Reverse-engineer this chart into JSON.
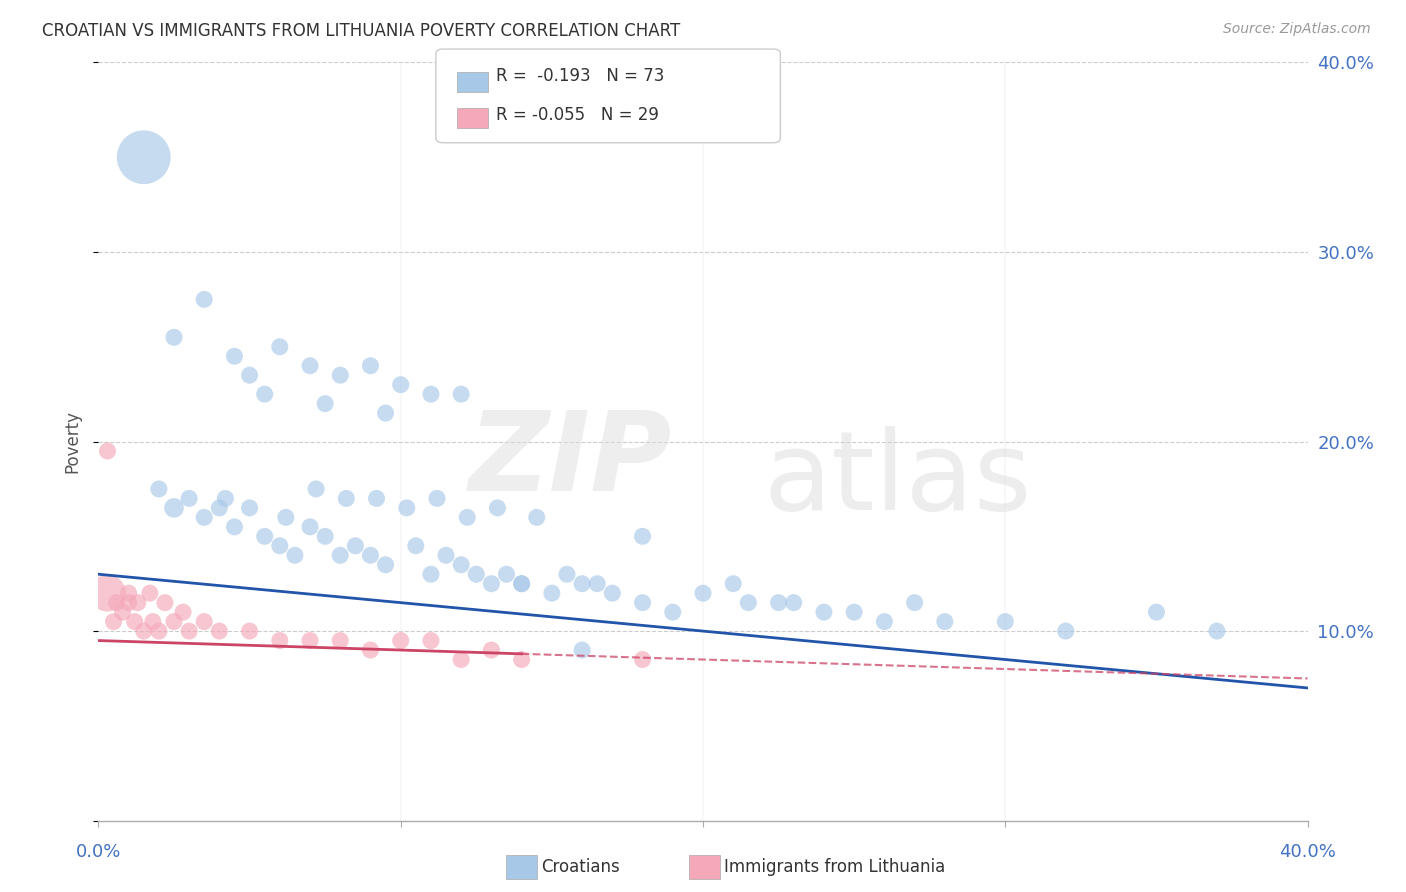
{
  "title": "CROATIAN VS IMMIGRANTS FROM LITHUANIA POVERTY CORRELATION CHART",
  "source": "Source: ZipAtlas.com",
  "ylabel": "Poverty",
  "legend_r1_label": "R =  -0.193   N = 73",
  "legend_r2_label": "R = -0.055   N = 29",
  "blue_color": "#a8c8e8",
  "pink_color": "#f4a8b8",
  "blue_line_color": "#2255aa",
  "pink_line_color": "#cc4466",
  "xmin": 0,
  "xmax": 40,
  "ymin": 0,
  "ymax": 40,
  "ytick_vals": [
    0,
    10,
    20,
    30,
    40
  ],
  "right_ytick_labels": [
    "",
    "10.0%",
    "20.0%",
    "30.0%",
    "40.0%"
  ],
  "blue_trend": [
    0.0,
    40.0,
    13.0,
    7.0
  ],
  "pink_trend": [
    0.0,
    40.0,
    9.5,
    7.5
  ],
  "pink_solid_end_x": 14.0,
  "croatians_x": [
    2.5,
    3.5,
    4.5,
    5.5,
    6.0,
    6.5,
    7.0,
    7.5,
    8.0,
    8.5,
    9.0,
    9.5,
    10.5,
    11.0,
    11.5,
    12.0,
    12.5,
    13.0,
    13.5,
    14.0,
    15.0,
    15.5,
    16.0,
    16.5,
    17.0,
    18.0,
    19.0,
    20.0,
    21.0,
    21.5,
    22.5,
    23.0,
    24.0,
    25.0,
    26.0,
    27.0,
    28.0,
    30.0,
    32.0,
    35.0,
    37.0,
    2.0,
    3.0,
    4.0,
    4.2,
    5.0,
    6.2,
    7.2,
    8.2,
    9.2,
    10.2,
    11.2,
    12.2,
    13.2,
    14.5,
    5.5,
    7.5,
    9.5,
    1.5,
    2.5,
    3.5,
    4.5,
    5.0,
    6.0,
    7.0,
    8.0,
    9.0,
    10.0,
    11.0,
    12.0,
    14.0,
    16.0,
    18.0
  ],
  "croatians_y": [
    16.5,
    16.0,
    15.5,
    15.0,
    14.5,
    14.0,
    15.5,
    15.0,
    14.0,
    14.5,
    14.0,
    13.5,
    14.5,
    13.0,
    14.0,
    13.5,
    13.0,
    12.5,
    13.0,
    12.5,
    12.0,
    13.0,
    12.5,
    12.5,
    12.0,
    11.5,
    11.0,
    12.0,
    12.5,
    11.5,
    11.5,
    11.5,
    11.0,
    11.0,
    10.5,
    11.5,
    10.5,
    10.5,
    10.0,
    11.0,
    10.0,
    17.5,
    17.0,
    16.5,
    17.0,
    16.5,
    16.0,
    17.5,
    17.0,
    17.0,
    16.5,
    17.0,
    16.0,
    16.5,
    16.0,
    22.5,
    22.0,
    21.5,
    35.0,
    25.5,
    27.5,
    24.5,
    23.5,
    25.0,
    24.0,
    23.5,
    24.0,
    23.0,
    22.5,
    22.5,
    12.5,
    9.0,
    15.0
  ],
  "croatians_size": [
    200,
    150,
    150,
    150,
    150,
    150,
    150,
    150,
    150,
    150,
    150,
    150,
    150,
    150,
    150,
    150,
    150,
    150,
    150,
    150,
    150,
    150,
    150,
    150,
    150,
    150,
    150,
    150,
    150,
    150,
    150,
    150,
    150,
    150,
    150,
    150,
    150,
    150,
    150,
    150,
    150,
    150,
    150,
    150,
    150,
    150,
    150,
    150,
    150,
    150,
    150,
    150,
    150,
    150,
    150,
    150,
    150,
    150,
    1500,
    150,
    150,
    150,
    150,
    150,
    150,
    150,
    150,
    150,
    150,
    150,
    150,
    150,
    150
  ],
  "lith_x": [
    0.5,
    0.8,
    1.0,
    1.2,
    1.5,
    1.8,
    2.0,
    2.5,
    3.0,
    3.5,
    4.0,
    5.0,
    6.0,
    7.0,
    8.0,
    9.0,
    10.0,
    11.0,
    12.0,
    13.0,
    14.0,
    18.0,
    0.3,
    0.6,
    1.0,
    1.3,
    1.7,
    2.2,
    2.8
  ],
  "lith_y": [
    10.5,
    11.0,
    11.5,
    10.5,
    10.0,
    10.5,
    10.0,
    10.5,
    10.0,
    10.5,
    10.0,
    10.0,
    9.5,
    9.5,
    9.5,
    9.0,
    9.5,
    9.5,
    8.5,
    9.0,
    8.5,
    8.5,
    12.0,
    11.5,
    12.0,
    11.5,
    12.0,
    11.5,
    11.0
  ],
  "lith_size": [
    150,
    150,
    150,
    150,
    150,
    150,
    150,
    150,
    150,
    150,
    150,
    150,
    150,
    150,
    150,
    150,
    150,
    150,
    150,
    150,
    150,
    150,
    700,
    150,
    150,
    150,
    150,
    150,
    150
  ],
  "lith_outlier_x": [
    0.3
  ],
  "lith_outlier_y": [
    19.5
  ]
}
